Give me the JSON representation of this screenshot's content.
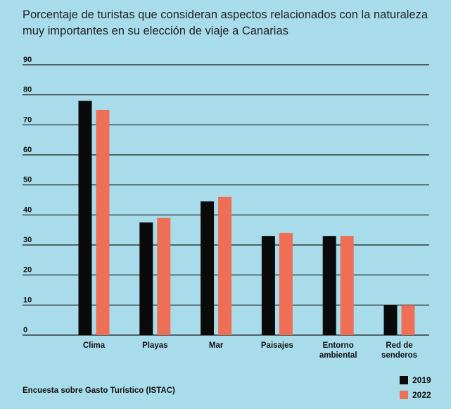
{
  "title": "Porcentaje de turistas que consideran aspectos relacionados con la naturaleza muy importantes en su elección de viaje a Canarias",
  "source": "Encuesta sobre Gasto Turístico (ISTAC)",
  "colors": {
    "background": "#a8dcea",
    "series_2019": "#0a0a0a",
    "series_2022": "#ee6f55"
  },
  "chart_data": {
    "type": "bar",
    "title": "Porcentaje de turistas que consideran aspectos relacionados con la naturaleza muy importantes en su elección de viaje a Canarias",
    "categories": [
      "Clima",
      "Playas",
      "Mar",
      "Paisajes",
      "Entorno ambiental",
      "Red de senderos"
    ],
    "category_lines": [
      [
        "Clima"
      ],
      [
        "Playas"
      ],
      [
        "Mar"
      ],
      [
        "Paisajes"
      ],
      [
        "Entorno",
        "ambiental"
      ],
      [
        "Red de",
        "senderos"
      ]
    ],
    "series": [
      {
        "name": "2019",
        "color": "#0a0a0a",
        "values": [
          78,
          37.5,
          44.5,
          33,
          33,
          10
        ]
      },
      {
        "name": "2022",
        "color": "#ee6f55",
        "values": [
          75,
          39,
          46,
          34,
          33,
          10
        ]
      }
    ],
    "ylim": [
      0,
      90
    ],
    "yticks": [
      "0",
      "10",
      "20",
      "30",
      "40",
      "50",
      "60",
      "70",
      "80",
      "90"
    ],
    "grid": true,
    "legend_position": "bottom-right"
  }
}
